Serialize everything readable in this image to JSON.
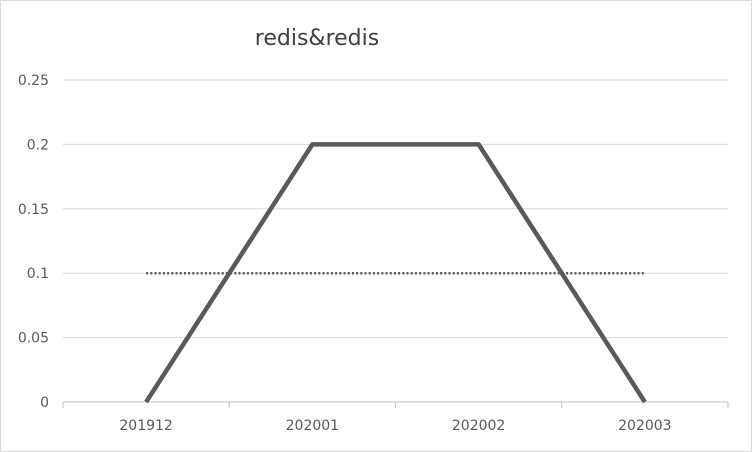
{
  "chart_data": {
    "type": "line",
    "title": "redis&redis",
    "xlabel": "",
    "ylabel": "",
    "categories": [
      "201912",
      "202001",
      "202002",
      "202003"
    ],
    "ylim": [
      0,
      0.25
    ],
    "yticks": [
      "0",
      "0.05",
      "0.1",
      "0.15",
      "0.2",
      "0.25"
    ],
    "grid": true,
    "legend": "none",
    "series": [
      {
        "values": [
          0,
          0.2,
          0.2,
          0
        ],
        "color": "#595959",
        "style": "solid"
      },
      {
        "values": [
          0.1,
          0.1,
          0.1,
          0.1
        ],
        "color": "#595959",
        "style": "dotted"
      }
    ],
    "colors": {
      "gridline": "#d9d9d9",
      "axis": "#bfbfbf",
      "text": "#595959",
      "title": "#404040"
    }
  }
}
